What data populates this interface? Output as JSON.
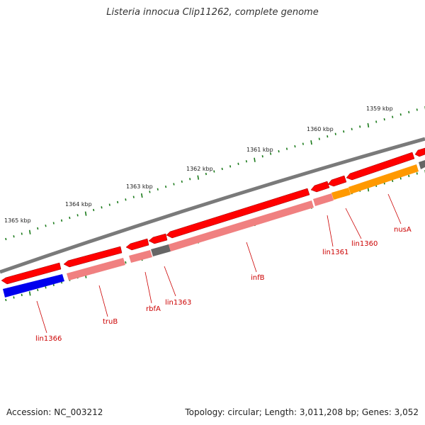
{
  "title": "Listeria innocua Clip11262, complete genome",
  "footer": {
    "accession": "Accession: NC_003212",
    "summary": "Topology: circular; Length: 3,011,208 bp; Genes: 3,052"
  },
  "colors": {
    "backbone": "#7a7a7a",
    "gene_red": "#ff0000",
    "cds_pink": "#f08080",
    "grey": "#666666",
    "blue": "#0000ee",
    "orange": "#ff9900",
    "tick": "#1a7a1a",
    "label": "#cc0000"
  },
  "kbp_ticks": [
    {
      "label": "1359 kbp",
      "pos": 1359
    },
    {
      "label": "1360 kbp",
      "pos": 1360
    },
    {
      "label": "1361 kbp",
      "pos": 1361
    },
    {
      "label": "1362 kbp",
      "pos": 1362
    },
    {
      "label": "1363 kbp",
      "pos": 1363
    },
    {
      "label": "1364 kbp",
      "pos": 1364
    },
    {
      "label": "1365 kbp",
      "pos": 1365
    }
  ],
  "gene_labels": [
    {
      "name": "lin1366"
    },
    {
      "name": "truB"
    },
    {
      "name": "rbfA"
    },
    {
      "name": "lin1363"
    },
    {
      "name": "infB"
    },
    {
      "name": "lin1361"
    },
    {
      "name": "lin1360"
    },
    {
      "name": "nusA"
    }
  ]
}
